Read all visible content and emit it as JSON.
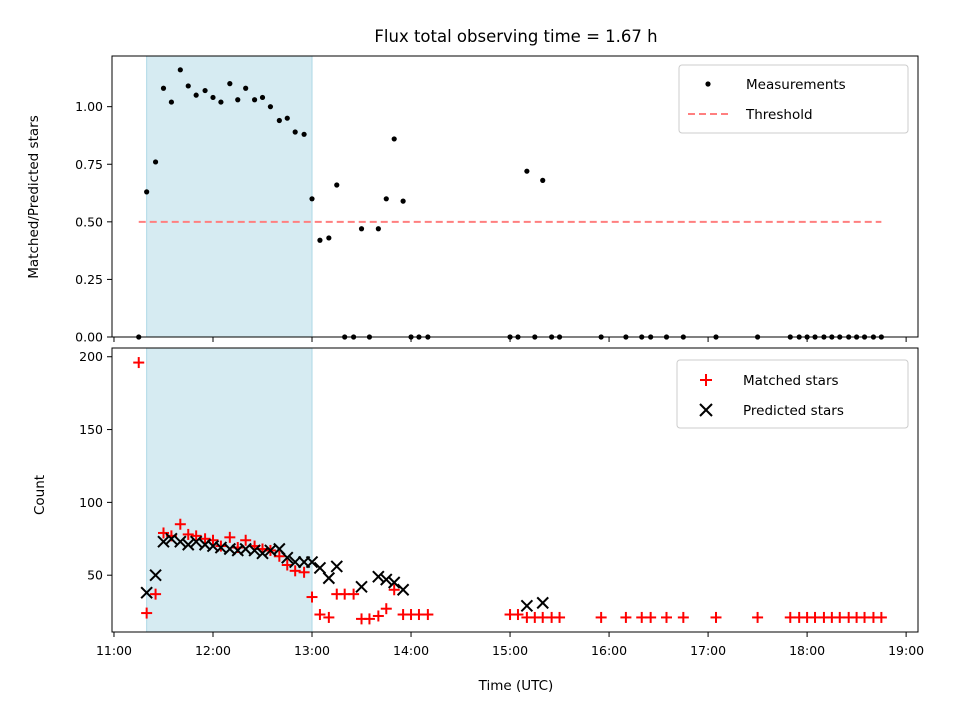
{
  "chart_data": [
    {
      "type": "scatter",
      "panel": "top",
      "title": "Flux total observing time = 1.67 h",
      "xlabel": "",
      "ylabel": "Matched/Predicted stars",
      "xlim": [
        10.98,
        19.12
      ],
      "ylim": [
        0,
        1.22
      ],
      "yticks": [
        0.0,
        0.25,
        0.5,
        0.75,
        1.0
      ],
      "ytick_labels": [
        "0.00",
        "0.25",
        "0.50",
        "0.75",
        "1.00"
      ],
      "highlight_span": [
        11.33,
        13.0
      ],
      "highlight_color": "#add8e6",
      "threshold": {
        "name": "Threshold",
        "y": 0.5,
        "x": [
          11.25,
          18.75
        ],
        "color": "#ff7f7f",
        "style": "dashed"
      },
      "series": [
        {
          "name": "Measurements",
          "color": "#000000",
          "marker": "dot",
          "x": [
            11.25,
            11.33,
            11.42,
            11.5,
            11.58,
            11.67,
            11.75,
            11.83,
            11.92,
            12.0,
            12.08,
            12.17,
            12.25,
            12.33,
            12.42,
            12.5,
            12.58,
            12.67,
            12.75,
            12.83,
            12.92,
            13.0,
            13.08,
            13.17,
            13.25,
            13.33,
            13.42,
            13.5,
            13.58,
            13.67,
            13.75,
            13.83,
            13.92,
            14.0,
            14.08,
            14.17,
            15.0,
            15.08,
            15.17,
            15.25,
            15.33,
            15.42,
            15.5,
            15.92,
            16.17,
            16.33,
            16.42,
            16.58,
            16.75,
            17.08,
            17.5,
            17.83,
            17.92,
            18.0,
            18.08,
            18.17,
            18.25,
            18.33,
            18.42,
            18.5,
            18.58,
            18.67,
            18.75
          ],
          "y": [
            0.0,
            0.63,
            0.76,
            1.08,
            1.02,
            1.16,
            1.09,
            1.05,
            1.07,
            1.04,
            1.02,
            1.1,
            1.03,
            1.08,
            1.03,
            1.04,
            1.0,
            0.94,
            0.95,
            0.89,
            0.88,
            0.6,
            0.42,
            0.43,
            0.66,
            0.0,
            0.0,
            0.47,
            0.0,
            0.47,
            0.6,
            0.86,
            0.59,
            0.0,
            0.0,
            0.0,
            0.0,
            0.0,
            0.72,
            0.0,
            0.68,
            0.0,
            0.0,
            0.0,
            0.0,
            0.0,
            0.0,
            0.0,
            0.0,
            0.0,
            0.0,
            0.0,
            0.0,
            0.0,
            0.0,
            0.0,
            0.0,
            0.0,
            0.0,
            0.0,
            0.0,
            0.0,
            0.0
          ]
        }
      ],
      "legend": {
        "placement": "top-right",
        "entries": [
          "Measurements",
          "Threshold"
        ]
      }
    },
    {
      "type": "scatter",
      "panel": "bottom",
      "title": "",
      "xlabel": "Time (UTC)",
      "ylabel": "Count",
      "xlim": [
        10.98,
        19.12
      ],
      "ylim": [
        11,
        206
      ],
      "xticks": [
        11,
        12,
        13,
        14,
        15,
        16,
        17,
        18,
        19
      ],
      "xtick_labels": [
        "11:00",
        "12:00",
        "13:00",
        "14:00",
        "15:00",
        "16:00",
        "17:00",
        "18:00",
        "19:00"
      ],
      "yticks": [
        50,
        100,
        150,
        200
      ],
      "ytick_labels": [
        "50",
        "100",
        "150",
        "200"
      ],
      "highlight_span": [
        11.33,
        13.0
      ],
      "highlight_color": "#add8e6",
      "series": [
        {
          "name": "Matched stars",
          "color": "#ff0000",
          "marker": "plus",
          "x": [
            11.25,
            11.33,
            11.42,
            11.5,
            11.58,
            11.67,
            11.75,
            11.83,
            11.92,
            12.0,
            12.08,
            12.17,
            12.25,
            12.33,
            12.42,
            12.5,
            12.58,
            12.67,
            12.75,
            12.83,
            12.92,
            13.0,
            13.08,
            13.17,
            13.25,
            13.33,
            13.42,
            13.5,
            13.58,
            13.67,
            13.75,
            13.83,
            13.92,
            14.0,
            14.08,
            14.17,
            15.0,
            15.08,
            15.17,
            15.25,
            15.33,
            15.42,
            15.5,
            15.92,
            16.17,
            16.33,
            16.42,
            16.58,
            16.75,
            17.08,
            17.5,
            17.83,
            17.92,
            18.0,
            18.08,
            18.17,
            18.25,
            18.33,
            18.42,
            18.5,
            18.58,
            18.67,
            18.75
          ],
          "y": [
            196,
            24,
            37,
            79,
            77,
            85,
            78,
            77,
            75,
            74,
            70,
            76,
            69,
            74,
            70,
            68,
            67,
            63,
            57,
            53,
            52,
            35,
            23,
            21,
            37,
            37,
            37,
            20,
            20,
            22,
            27,
            40,
            23,
            23,
            23,
            23,
            23,
            23,
            21,
            21,
            21,
            21,
            21,
            21,
            21,
            21,
            21,
            21,
            21,
            21,
            21,
            21,
            21,
            21,
            21,
            21,
            21,
            21,
            21,
            21,
            21,
            21,
            21
          ]
        },
        {
          "name": "Predicted stars",
          "color": "#000000",
          "marker": "x",
          "x": [
            11.33,
            11.42,
            11.5,
            11.58,
            11.67,
            11.75,
            11.83,
            11.92,
            12.0,
            12.08,
            12.17,
            12.25,
            12.33,
            12.42,
            12.5,
            12.58,
            12.67,
            12.75,
            12.83,
            12.92,
            13.0,
            13.08,
            13.17,
            13.25,
            13.5,
            13.67,
            13.75,
            13.83,
            13.92,
            15.17,
            15.33
          ],
          "y": [
            38,
            50,
            73,
            75,
            73,
            71,
            73,
            71,
            70,
            69,
            68,
            67,
            68,
            67,
            65,
            67,
            68,
            62,
            59,
            59,
            59,
            55,
            48,
            56,
            42,
            49,
            47,
            45,
            40,
            29,
            31
          ]
        }
      ],
      "legend": {
        "placement": "top-right",
        "entries": [
          "Matched stars",
          "Predicted stars"
        ]
      }
    }
  ]
}
